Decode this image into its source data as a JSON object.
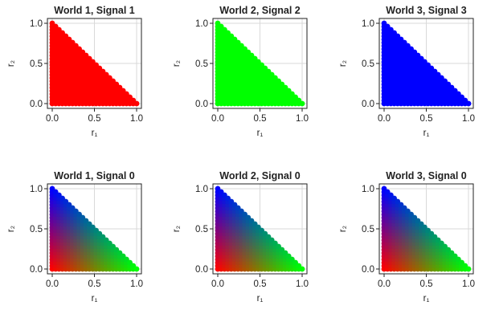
{
  "colors": {
    "red": "#ff0000",
    "green": "#00ff00",
    "blue": "#0000ff",
    "axis": "#222222",
    "grid": "#d9d9d9"
  },
  "chart_data": [
    {
      "type": "scatter",
      "title": "World 1, Signal 1",
      "xlabel": "r₁",
      "ylabel": "r₂",
      "xlim": [
        0,
        1
      ],
      "ylim": [
        0,
        1
      ],
      "xticks": [
        "0.0",
        "0.5",
        "1.0"
      ],
      "yticks": [
        "0.0",
        "0.5",
        "1.0"
      ],
      "grid": true,
      "grid_step": 0.04,
      "domain": "simplex r1+r2<=1",
      "color_mode": "solid",
      "color": "#ff0000"
    },
    {
      "type": "scatter",
      "title": "World 2, Signal 2",
      "xlabel": "r₁",
      "ylabel": "r₂",
      "xlim": [
        0,
        1
      ],
      "ylim": [
        0,
        1
      ],
      "xticks": [
        "0.0",
        "0.5",
        "1.0"
      ],
      "yticks": [
        "0.0",
        "0.5",
        "1.0"
      ],
      "grid": true,
      "grid_step": 0.04,
      "domain": "simplex r1+r2<=1",
      "color_mode": "solid",
      "color": "#00ff00"
    },
    {
      "type": "scatter",
      "title": "World 3, Signal 3",
      "xlabel": "r₁",
      "ylabel": "r₂",
      "xlim": [
        0,
        1
      ],
      "ylim": [
        0,
        1
      ],
      "xticks": [
        "0.0",
        "0.5",
        "1.0"
      ],
      "yticks": [
        "0.0",
        "0.5",
        "1.0"
      ],
      "grid": true,
      "grid_step": 0.04,
      "domain": "simplex r1+r2<=1",
      "color_mode": "solid",
      "color": "#0000ff"
    },
    {
      "type": "scatter",
      "title": "World 1, Signal 0",
      "xlabel": "r₁",
      "ylabel": "r₂",
      "xlim": [
        0,
        1
      ],
      "ylim": [
        0,
        1
      ],
      "xticks": [
        "0.0",
        "0.5",
        "1.0"
      ],
      "yticks": [
        "0.0",
        "0.5",
        "1.0"
      ],
      "grid": true,
      "grid_step": 0.04,
      "domain": "simplex r1+r2<=1",
      "color_mode": "barycentric",
      "corner_colors": {
        "origin": "#ff0000",
        "r1": "#00ff00",
        "r2": "#0000ff"
      }
    },
    {
      "type": "scatter",
      "title": "World 2, Signal 0",
      "xlabel": "r₁",
      "ylabel": "r₂",
      "xlim": [
        0,
        1
      ],
      "ylim": [
        0,
        1
      ],
      "xticks": [
        "0.0",
        "0.5",
        "1.0"
      ],
      "yticks": [
        "0.0",
        "0.5",
        "1.0"
      ],
      "grid": true,
      "grid_step": 0.04,
      "domain": "simplex r1+r2<=1",
      "color_mode": "barycentric",
      "corner_colors": {
        "origin": "#ff0000",
        "r1": "#00ff00",
        "r2": "#0000ff"
      }
    },
    {
      "type": "scatter",
      "title": "World 3, Signal 0",
      "xlabel": "r₁",
      "ylabel": "r₂",
      "xlim": [
        0,
        1
      ],
      "ylim": [
        0,
        1
      ],
      "xticks": [
        "0.0",
        "0.5",
        "1.0"
      ],
      "yticks": [
        "0.0",
        "0.5",
        "1.0"
      ],
      "grid": true,
      "grid_step": 0.04,
      "domain": "simplex r1+r2<=1",
      "color_mode": "barycentric",
      "corner_colors": {
        "origin": "#ff0000",
        "r1": "#00ff00",
        "r2": "#0000ff"
      }
    }
  ]
}
